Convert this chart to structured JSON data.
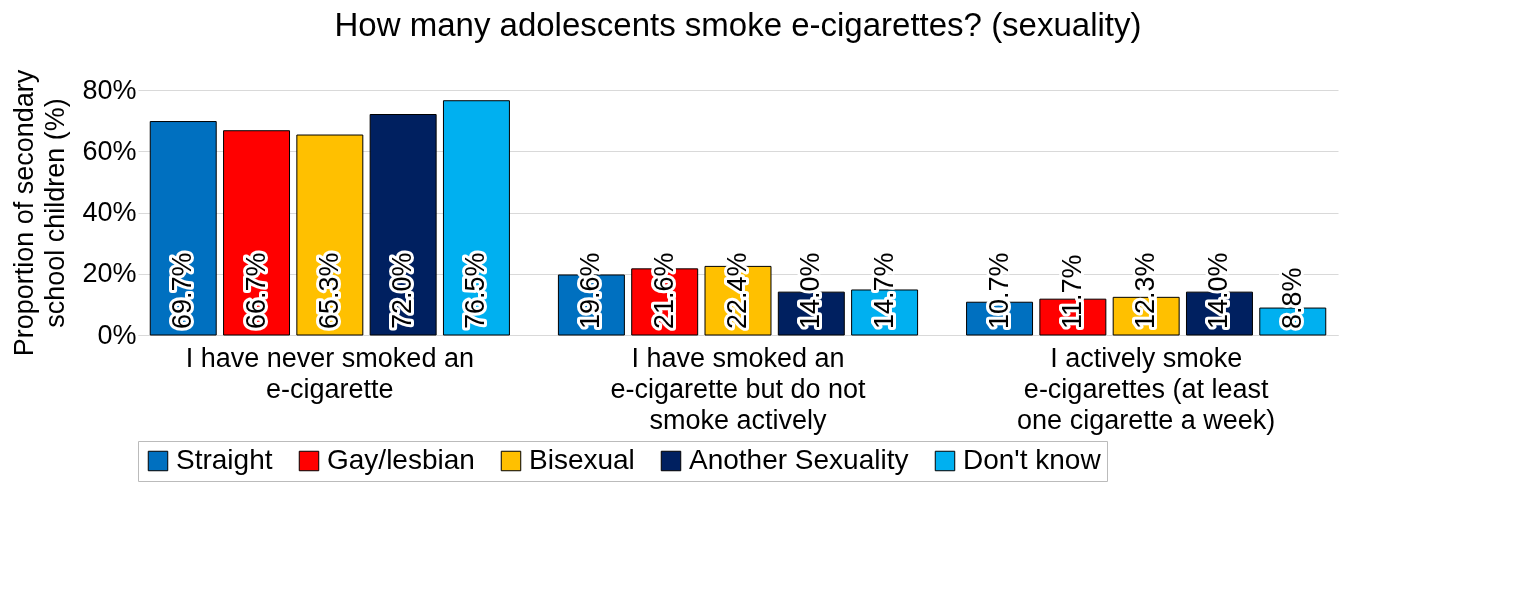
{
  "chart_data": {
    "type": "bar",
    "title": "How many adolescents smoke e-cigarettes? (sexuality)",
    "ylabel": "Proportion of secondary school children (%)",
    "categories": [
      "I have never smoked an e-cigarette",
      "I have smoked an e-cigarette but do not smoke actively",
      "I actively smoke e-cigarettes (at least one cigarette a week)"
    ],
    "series": [
      {
        "name": "Straight",
        "color": "#0070c0",
        "values": [
          69.7,
          19.6,
          10.7
        ],
        "value_labels": [
          "69.7%",
          "19.6%",
          "10.7%"
        ]
      },
      {
        "name": "Gay/lesbian",
        "color": "#ff0000",
        "values": [
          66.7,
          21.6,
          11.7
        ],
        "value_labels": [
          "66.7%",
          "21.6%",
          "11.7%"
        ]
      },
      {
        "name": "Bisexual",
        "color": "#ffc000",
        "values": [
          65.3,
          22.4,
          12.3
        ],
        "value_labels": [
          "65.3%",
          "22.4%",
          "12.3%"
        ]
      },
      {
        "name": "Another Sexuality",
        "color": "#002060",
        "values": [
          72.0,
          14.0,
          14.0
        ],
        "value_labels": [
          "72.0%",
          "14.0%",
          "14.0%"
        ]
      },
      {
        "name": "Don't know",
        "color": "#00b0f0",
        "values": [
          76.5,
          14.7,
          8.8
        ],
        "value_labels": [
          "76.5%",
          "14.7%",
          "8.8%"
        ]
      }
    ],
    "ylim": [
      0,
      80
    ],
    "yticks": [
      {
        "value": 0,
        "label": "0%"
      },
      {
        "value": 20,
        "label": "20%"
      },
      {
        "value": 40,
        "label": "40%"
      },
      {
        "value": 60,
        "label": "60%"
      },
      {
        "value": 80,
        "label": "80%"
      }
    ],
    "grid": "y",
    "legend": "bottom"
  }
}
